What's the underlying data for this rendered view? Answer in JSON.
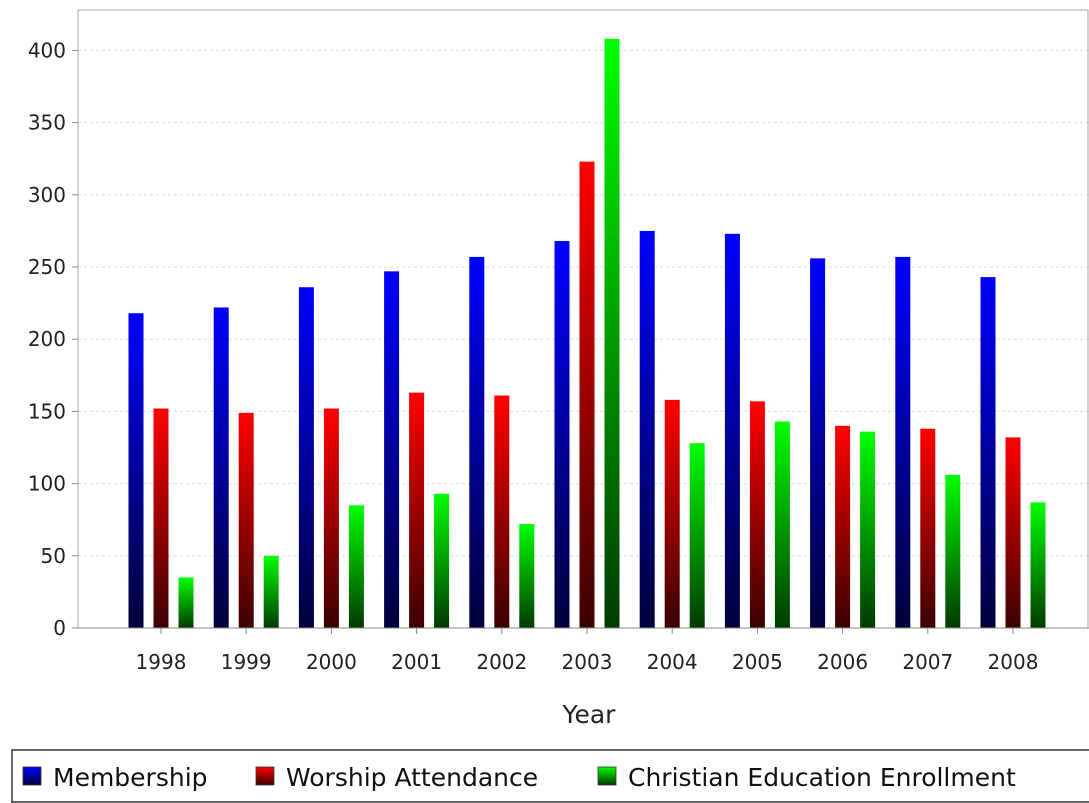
{
  "chart_data": {
    "type": "bar",
    "title": "",
    "xlabel": "Year",
    "ylabel": "",
    "categories": [
      "1998",
      "1999",
      "2000",
      "2001",
      "2002",
      "2003",
      "2004",
      "2005",
      "2006",
      "2007",
      "2008"
    ],
    "series": [
      {
        "name": "Membership",
        "color": "#0000ff",
        "values": [
          218,
          222,
          236,
          247,
          257,
          268,
          275,
          273,
          256,
          257,
          243
        ]
      },
      {
        "name": "Worship Attendance",
        "color": "#ff0000",
        "values": [
          152,
          149,
          152,
          163,
          161,
          323,
          158,
          157,
          140,
          138,
          132
        ]
      },
      {
        "name": "Christian Education Enrollment",
        "color": "#00ff00",
        "values": [
          35,
          50,
          85,
          93,
          72,
          408,
          128,
          143,
          136,
          106,
          87
        ]
      }
    ],
    "ylim": [
      0,
      428
    ],
    "yticks": [
      0,
      50,
      100,
      150,
      200,
      250,
      300,
      350,
      400
    ],
    "grid": true,
    "legend_position": "bottom"
  }
}
